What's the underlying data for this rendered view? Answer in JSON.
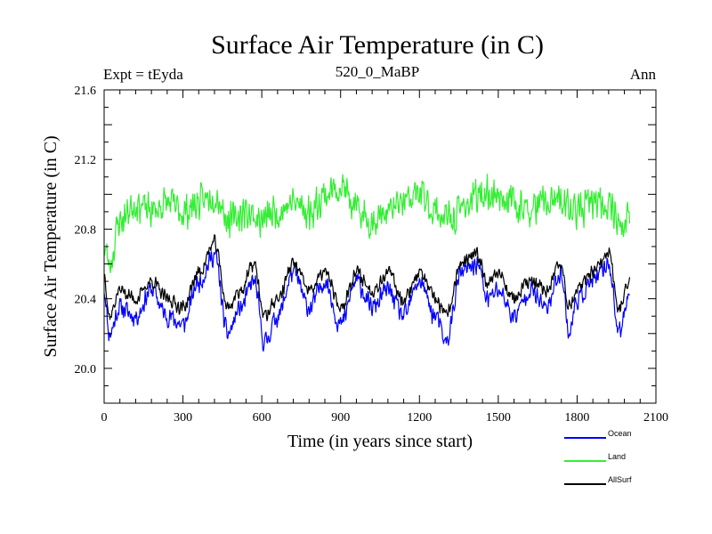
{
  "chart_data": {
    "type": "line",
    "title": "Surface Air Temperature (in C)",
    "subtitle_left": "Expt = tEyda",
    "subtitle_center": "520_0_MaBP",
    "subtitle_right": "Ann",
    "xlabel": "Time (in years since start)",
    "ylabel": "Surface Air Temperature (in C)",
    "xlim": [
      0,
      2100
    ],
    "ylim": [
      19.8,
      21.6
    ],
    "x_ticks": [
      0,
      300,
      600,
      900,
      1200,
      1500,
      1800,
      2100
    ],
    "x_tick_labels": [
      "0",
      "300",
      "600",
      "900",
      "1200",
      "1500",
      "1800",
      "2100"
    ],
    "y_ticks": [
      20.0,
      20.4,
      20.8,
      21.2,
      21.6
    ],
    "y_tick_labels": [
      "20.0",
      "20.4",
      "20.8",
      "21.2",
      "21.6"
    ],
    "x_range": [
      0,
      2000
    ],
    "legend_position": "bottom-right",
    "series": [
      {
        "name": "Ocean",
        "color": "#0000ff",
        "anchors": [
          [
            0,
            20.45
          ],
          [
            20,
            20.2
          ],
          [
            60,
            20.35
          ],
          [
            120,
            20.3
          ],
          [
            180,
            20.45
          ],
          [
            240,
            20.3
          ],
          [
            300,
            20.25
          ],
          [
            360,
            20.5
          ],
          [
            420,
            20.65
          ],
          [
            470,
            20.2
          ],
          [
            520,
            20.35
          ],
          [
            570,
            20.5
          ],
          [
            610,
            20.15
          ],
          [
            660,
            20.3
          ],
          [
            720,
            20.55
          ],
          [
            780,
            20.35
          ],
          [
            840,
            20.5
          ],
          [
            900,
            20.25
          ],
          [
            960,
            20.5
          ],
          [
            1020,
            20.35
          ],
          [
            1080,
            20.45
          ],
          [
            1140,
            20.3
          ],
          [
            1200,
            20.5
          ],
          [
            1260,
            20.3
          ],
          [
            1300,
            20.15
          ],
          [
            1360,
            20.55
          ],
          [
            1420,
            20.6
          ],
          [
            1460,
            20.4
          ],
          [
            1500,
            20.45
          ],
          [
            1560,
            20.3
          ],
          [
            1620,
            20.45
          ],
          [
            1680,
            20.35
          ],
          [
            1740,
            20.55
          ],
          [
            1770,
            20.2
          ],
          [
            1800,
            20.4
          ],
          [
            1860,
            20.5
          ],
          [
            1920,
            20.6
          ],
          [
            1960,
            20.2
          ],
          [
            2000,
            20.45
          ]
        ],
        "amplitude": 0.07,
        "seed": 11
      },
      {
        "name": "Land",
        "color": "#33ee33",
        "anchors": [
          [
            0,
            20.7
          ],
          [
            20,
            20.6
          ],
          [
            60,
            20.85
          ],
          [
            120,
            20.95
          ],
          [
            180,
            20.9
          ],
          [
            240,
            20.95
          ],
          [
            300,
            20.9
          ],
          [
            360,
            20.95
          ],
          [
            420,
            21.0
          ],
          [
            480,
            20.85
          ],
          [
            540,
            20.9
          ],
          [
            600,
            20.85
          ],
          [
            660,
            20.9
          ],
          [
            720,
            20.95
          ],
          [
            780,
            20.9
          ],
          [
            840,
            21.0
          ],
          [
            900,
            21.05
          ],
          [
            960,
            20.9
          ],
          [
            1020,
            20.85
          ],
          [
            1080,
            20.9
          ],
          [
            1140,
            20.95
          ],
          [
            1200,
            21.0
          ],
          [
            1260,
            20.9
          ],
          [
            1320,
            20.85
          ],
          [
            1380,
            20.95
          ],
          [
            1440,
            21.0
          ],
          [
            1500,
            21.0
          ],
          [
            1560,
            20.95
          ],
          [
            1620,
            20.9
          ],
          [
            1680,
            20.95
          ],
          [
            1740,
            20.95
          ],
          [
            1800,
            20.9
          ],
          [
            1860,
            20.95
          ],
          [
            1920,
            20.95
          ],
          [
            1980,
            20.8
          ],
          [
            2000,
            20.9
          ]
        ],
        "amplitude": 0.12,
        "seed": 23
      },
      {
        "name": "AllSurf",
        "color": "#000000",
        "anchors": [
          [
            0,
            20.55
          ],
          [
            20,
            20.3
          ],
          [
            60,
            20.45
          ],
          [
            120,
            20.4
          ],
          [
            180,
            20.5
          ],
          [
            240,
            20.4
          ],
          [
            300,
            20.35
          ],
          [
            360,
            20.55
          ],
          [
            420,
            20.72
          ],
          [
            470,
            20.35
          ],
          [
            520,
            20.45
          ],
          [
            570,
            20.6
          ],
          [
            610,
            20.3
          ],
          [
            660,
            20.4
          ],
          [
            720,
            20.6
          ],
          [
            780,
            20.45
          ],
          [
            840,
            20.55
          ],
          [
            900,
            20.35
          ],
          [
            960,
            20.55
          ],
          [
            1020,
            20.45
          ],
          [
            1080,
            20.55
          ],
          [
            1140,
            20.4
          ],
          [
            1200,
            20.55
          ],
          [
            1260,
            20.4
          ],
          [
            1300,
            20.3
          ],
          [
            1360,
            20.6
          ],
          [
            1420,
            20.65
          ],
          [
            1460,
            20.5
          ],
          [
            1500,
            20.55
          ],
          [
            1560,
            20.4
          ],
          [
            1620,
            20.5
          ],
          [
            1680,
            20.45
          ],
          [
            1740,
            20.6
          ],
          [
            1770,
            20.35
          ],
          [
            1800,
            20.45
          ],
          [
            1860,
            20.55
          ],
          [
            1920,
            20.65
          ],
          [
            1960,
            20.35
          ],
          [
            2000,
            20.5
          ]
        ],
        "amplitude": 0.05,
        "seed": 37
      }
    ]
  }
}
